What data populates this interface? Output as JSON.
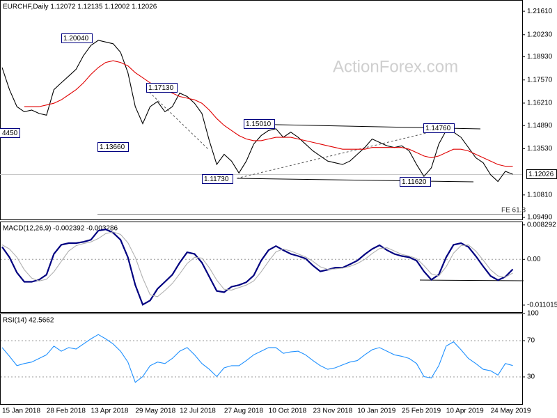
{
  "chart_data": [
    {
      "type": "line",
      "title": "EURCHF,Daily  1.12072 1.12135 1.12002 1.12026",
      "watermark": "ActionForex.com",
      "series": [
        {
          "color": "#000000",
          "values": [
            1.183,
            1.17,
            1.16,
            1.157,
            1.158,
            1.156,
            1.155,
            1.17,
            1.174,
            1.178,
            1.182,
            1.19,
            1.196,
            1.199,
            1.198,
            1.197,
            1.192,
            1.18,
            1.16,
            1.15,
            1.16,
            1.163,
            1.157,
            1.16,
            1.168,
            1.166,
            1.162,
            1.156,
            1.14,
            1.126,
            1.132,
            1.128,
            1.121,
            1.128,
            1.138,
            1.143,
            1.146,
            1.147,
            1.142,
            1.145,
            1.142,
            1.138,
            1.134,
            1.131,
            1.128,
            1.127,
            1.126,
            1.128,
            1.132,
            1.136,
            1.141,
            1.139,
            1.137,
            1.136,
            1.137,
            1.134,
            1.126,
            1.119,
            1.124,
            1.138,
            1.146,
            1.145,
            1.142,
            1.136,
            1.13,
            1.127,
            1.12,
            1.116,
            1.122,
            1.12026
          ]
        },
        {
          "color": "#e00000",
          "values": [
            null,
            null,
            null,
            1.16,
            1.16,
            1.16,
            1.161,
            1.162,
            1.164,
            1.167,
            1.17,
            1.174,
            1.179,
            1.183,
            1.186,
            1.187,
            1.186,
            1.184,
            1.18,
            1.177,
            1.174,
            1.172,
            1.17,
            1.168,
            1.166,
            1.165,
            1.164,
            1.162,
            1.158,
            1.153,
            1.149,
            1.146,
            1.143,
            1.141,
            1.14,
            1.14,
            1.141,
            1.142,
            1.142,
            1.142,
            1.141,
            1.14,
            1.139,
            1.138,
            1.137,
            1.136,
            1.135,
            1.135,
            1.135,
            1.135,
            1.136,
            1.136,
            1.136,
            1.136,
            1.136,
            1.135,
            1.133,
            1.131,
            1.13,
            1.131,
            1.133,
            1.135,
            1.135,
            1.134,
            1.132,
            1.13,
            1.128,
            1.126,
            1.125,
            1.125
          ]
        }
      ],
      "ylim": [
        1.0937,
        1.2227
      ],
      "yticks": [
        {
          "value": 1.2161,
          "label": "1.21610"
        },
        {
          "value": 1.2023,
          "label": "1.20230"
        },
        {
          "value": 1.1893,
          "label": "1.18930"
        },
        {
          "value": 1.1757,
          "label": "1.17570"
        },
        {
          "value": 1.1621,
          "label": "1.16210"
        },
        {
          "value": 1.1489,
          "label": "1.14890"
        },
        {
          "value": 1.1353,
          "label": "1.13530"
        },
        {
          "value": 1.1081,
          "label": "1.10810"
        },
        {
          "value": 1.0949,
          "label": "1.09490"
        }
      ],
      "annotations": [
        "1.20040",
        "1.17130",
        "1.13660",
        "1.11730",
        "1.15010",
        "1.14760",
        "1.11620",
        "4450",
        "FE 61.8",
        "1.12026"
      ]
    },
    {
      "type": "line",
      "title": "MACD(12,26,9) -0.002392 -0.003286",
      "series": [
        {
          "color": "#000080",
          "values": [
            0.003,
            0.0005,
            -0.0032,
            -0.0054,
            -0.0054,
            -0.0049,
            -0.0037,
            0.0013,
            0.0035,
            0.0039,
            0.0039,
            0.0042,
            0.0047,
            0.0069,
            0.0072,
            0.0064,
            0.0047,
            0.0005,
            -0.0062,
            -0.0109,
            -0.0099,
            -0.0071,
            -0.0054,
            -0.0037,
            -0.0008,
            0.0017,
            0.0013,
            -0.0008,
            -0.0042,
            -0.0076,
            -0.0079,
            -0.0066,
            -0.0062,
            -0.0055,
            -0.0039,
            -0.0003,
            0.0022,
            0.0032,
            0.0022,
            0.0013,
            0.0008,
            0.0002,
            -0.0015,
            -0.0029,
            -0.0025,
            -0.002,
            -0.002,
            -0.0012,
            -0.0003,
            0.0012,
            0.0025,
            0.0034,
            0.0022,
            0.0013,
            0.0008,
            0.0005,
            -0.0003,
            -0.0029,
            -0.0049,
            -0.0037,
            0.0005,
            0.0035,
            0.0039,
            0.003,
            0.0008,
            -0.0017,
            -0.004,
            -0.005,
            -0.0042,
            -0.002392
          ]
        },
        {
          "color": "#b0b0b0",
          "values": [
            0.0035,
            0.0025,
            0.0005,
            -0.0025,
            -0.0045,
            -0.0052,
            -0.0048,
            -0.003,
            -0.0005,
            0.002,
            0.0033,
            0.0038,
            0.0042,
            0.005,
            0.0062,
            0.0066,
            0.006,
            0.004,
            0.0005,
            -0.0045,
            -0.0085,
            -0.009,
            -0.0075,
            -0.0058,
            -0.0035,
            -0.001,
            0.0005,
            0.0003,
            -0.002,
            -0.005,
            -0.0072,
            -0.0074,
            -0.0068,
            -0.0062,
            -0.0052,
            -0.003,
            -0.0005,
            0.0018,
            0.0025,
            0.002,
            0.0013,
            0.0006,
            -0.0005,
            -0.0018,
            -0.0024,
            -0.0023,
            -0.0021,
            -0.0017,
            -0.001,
            0.0,
            0.0014,
            0.0026,
            0.0028,
            0.002,
            0.0012,
            0.0008,
            0.0002,
            -0.0015,
            -0.0035,
            -0.004,
            -0.0018,
            0.0015,
            0.0033,
            0.0035,
            0.002,
            -0.0002,
            -0.0025,
            -0.004,
            -0.0043,
            -0.003286
          ]
        }
      ],
      "ylim": [
        -0.0127,
        0.0091
      ],
      "yticks": [
        0.008292,
        {
          "value": 0,
          "label": "0.00"
        },
        -0.011015
      ],
      "reference_lines": [
        0
      ]
    },
    {
      "type": "line",
      "title": "RSI(14) 42.5662",
      "categories": [
        "15 Jan 2018",
        null,
        null,
        null,
        null,
        null,
        "28 Feb 2018",
        null,
        null,
        null,
        null,
        null,
        "13 Apr 2018",
        null,
        null,
        null,
        null,
        null,
        "29 May 2018",
        null,
        null,
        null,
        null,
        null,
        "12 Jul 2018",
        null,
        null,
        null,
        null,
        null,
        "27 Aug 2018",
        null,
        null,
        null,
        null,
        null,
        "10 Oct 2018",
        null,
        null,
        null,
        null,
        null,
        "23 Nov 2018",
        null,
        null,
        null,
        null,
        null,
        "10 Jan 2019",
        null,
        null,
        null,
        null,
        null,
        "25 Feb 2019",
        null,
        null,
        null,
        null,
        null,
        "10 Apr 2019",
        null,
        null,
        null,
        null,
        null,
        "24 May 2019",
        null,
        null,
        null
      ],
      "series": [
        {
          "color": "#1e90ff",
          "values": [
            62.4,
            52.8,
            42.4,
            44.8,
            46.4,
            50.4,
            54.4,
            64,
            58.4,
            62.4,
            60.8,
            66.4,
            72,
            76.8,
            72,
            66.4,
            58.4,
            46.4,
            24,
            30.4,
            42.4,
            46.4,
            44.8,
            50.4,
            58.4,
            62.4,
            54.4,
            44.8,
            38.4,
            30.4,
            40,
            42.4,
            42.4,
            48,
            54.4,
            58.4,
            62.4,
            62.4,
            56,
            57.6,
            58.4,
            54.4,
            48,
            42.4,
            38.4,
            40,
            43.2,
            46.4,
            48,
            54.4,
            60,
            62.4,
            58.4,
            54.4,
            52.8,
            50.4,
            44.8,
            30.4,
            28.8,
            42.4,
            64,
            68.8,
            60,
            50.4,
            44.8,
            38.4,
            36.8,
            32,
            44.8,
            42.5662
          ]
        }
      ],
      "ylim": [
        0,
        100
      ],
      "yticks": [
        100,
        70,
        30
      ],
      "reference_lines": [
        70,
        30
      ]
    }
  ]
}
